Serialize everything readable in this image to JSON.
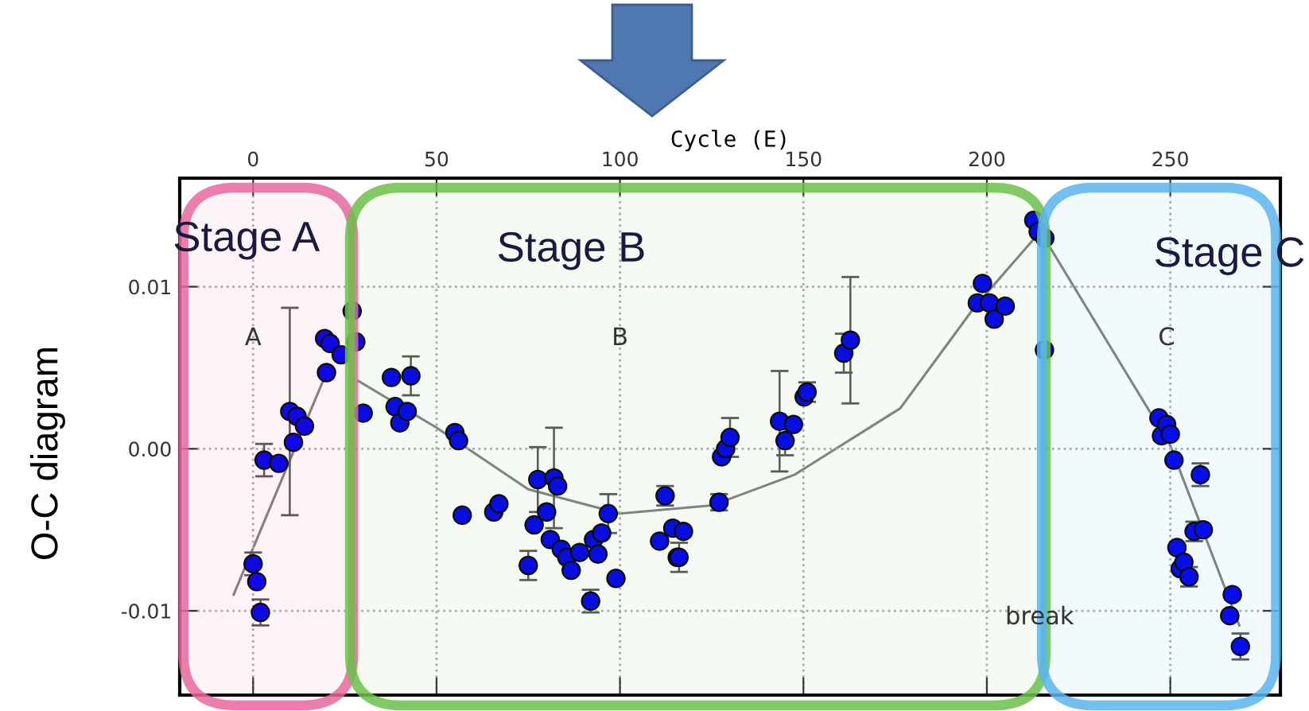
{
  "chart_data": {
    "type": "scatter",
    "xlabel": "Cycle (E)",
    "ylabel": "O-C diagram",
    "xlim": [
      -20,
      280
    ],
    "xticks": [
      0,
      50,
      100,
      150,
      200,
      250
    ],
    "ylim": [
      -0.0152,
      0.0167
    ],
    "yticks": [
      {
        "value": 0.01,
        "label": "0.01"
      },
      {
        "value": 0.0,
        "label": "0.00"
      },
      {
        "value": -0.01,
        "label": "-0.01"
      }
    ],
    "grid": true,
    "legend": false,
    "bands": [
      {
        "axis": "x",
        "from": -19,
        "to": 27.3,
        "label": "Stage A",
        "color": "#e8679e"
      },
      {
        "axis": "x",
        "from": 26.4,
        "to": 216,
        "label": "Stage B",
        "color": "#6cc04a"
      },
      {
        "axis": "x",
        "from": 215,
        "to": 278.8,
        "label": "Stage C",
        "color": "#5ab4f0"
      }
    ],
    "series": [
      {
        "marker": "circle",
        "color": "#0000ee",
        "x": [
          0,
          1,
          2,
          3,
          7,
          10,
          11,
          12,
          14,
          19.5,
          20,
          21,
          24,
          27,
          28,
          30,
          37.7,
          38.7,
          40,
          42,
          43,
          55,
          56,
          57,
          65.6,
          67,
          75,
          76.6,
          77.6,
          80,
          81,
          82,
          83,
          84,
          85.5,
          86.7,
          89,
          92,
          92.8,
          94,
          95,
          96.8,
          98.9,
          110.8,
          112.3,
          114.4,
          115.6,
          116.1,
          117.3,
          127,
          127.7,
          128.8,
          130,
          143.5,
          145,
          147.3,
          150.2,
          151,
          161,
          162.8,
          197.4,
          198.8,
          200.7,
          202,
          205,
          212.8,
          214,
          215.7,
          215.8,
          246.9,
          247.6,
          249,
          250,
          251,
          251.8,
          252.7,
          253.7,
          255.1,
          256.5,
          258.2,
          259,
          266.2,
          266.9,
          269.1
        ],
        "values": [
          -0.0071,
          -0.0082,
          -0.0101,
          -0.0007,
          -0.0009,
          0.0023,
          0.0004,
          0.002,
          0.0014,
          0.0068,
          0.0047,
          0.0065,
          0.0058,
          0.0085,
          0.0066,
          0.0022,
          0.0044,
          0.0026,
          0.0016,
          0.0023,
          0.0045,
          0.001,
          0.0005,
          -0.0041,
          -0.0039,
          -0.0034,
          -0.0072,
          -0.0047,
          -0.0019,
          -0.0039,
          -0.0056,
          -0.0018,
          -0.0023,
          -0.0062,
          -0.0067,
          -0.0075,
          -0.0064,
          -0.0094,
          -0.0056,
          -0.0065,
          -0.0052,
          -0.004,
          -0.008,
          -0.0057,
          -0.0029,
          -0.0049,
          -0.0067,
          -0.0067,
          -0.0051,
          -0.0033,
          -0.0005,
          0.0,
          0.0007,
          0.0017,
          0.0005,
          0.0015,
          0.0032,
          0.0035,
          0.0059,
          0.0067,
          0.009,
          0.0102,
          0.009,
          0.008,
          0.0088,
          0.0141,
          0.0134,
          0.0061,
          0.013,
          0.0019,
          0.0008,
          0.0015,
          0.0009,
          -0.0007,
          -0.0061,
          -0.0074,
          -0.007,
          -0.0079,
          -0.0051,
          -0.0016,
          -0.005,
          -0.0103,
          -0.009,
          -0.0122
        ],
        "errors": [
          0.0007,
          null,
          0.0008,
          0.001,
          null,
          0.0064,
          null,
          null,
          null,
          null,
          null,
          null,
          null,
          null,
          null,
          null,
          null,
          null,
          null,
          null,
          0.0012,
          null,
          null,
          null,
          null,
          null,
          0.0009,
          null,
          0.002,
          null,
          null,
          0.0031,
          null,
          null,
          null,
          null,
          null,
          0.0007,
          null,
          null,
          null,
          0.0012,
          null,
          null,
          0.0006,
          null,
          null,
          0.0009,
          null,
          0.0005,
          null,
          null,
          0.0012,
          0.0031,
          0.0009,
          null,
          null,
          0.0006,
          0.0012,
          0.0039,
          null,
          null,
          null,
          null,
          null,
          null,
          null,
          null,
          null,
          null,
          null,
          null,
          null,
          null,
          null,
          null,
          null,
          0.0006,
          0.0006,
          0.0007,
          null,
          null,
          null,
          0.0008
        ]
      },
      {
        "type": "line",
        "color": "#808080",
        "x": [
          -5.3,
          20
        ],
        "values": [
          -0.009,
          0.0047
        ]
      },
      {
        "type": "line",
        "color": "#808080",
        "x": [
          28.6,
          50,
          75,
          100,
          125,
          147.6,
          176.4,
          196.5,
          213
        ],
        "values": [
          0.0042,
          0.0013,
          -0.0025,
          -0.004,
          -0.0035,
          -0.0016,
          0.0025,
          0.0087,
          0.013
        ]
      },
      {
        "type": "line",
        "color": "#808080",
        "x": [
          213,
          250,
          268.8
        ],
        "values": [
          0.014,
          0.0002,
          -0.0109
        ]
      }
    ],
    "annotations": [
      "A",
      "B",
      "C",
      "break"
    ]
  }
}
